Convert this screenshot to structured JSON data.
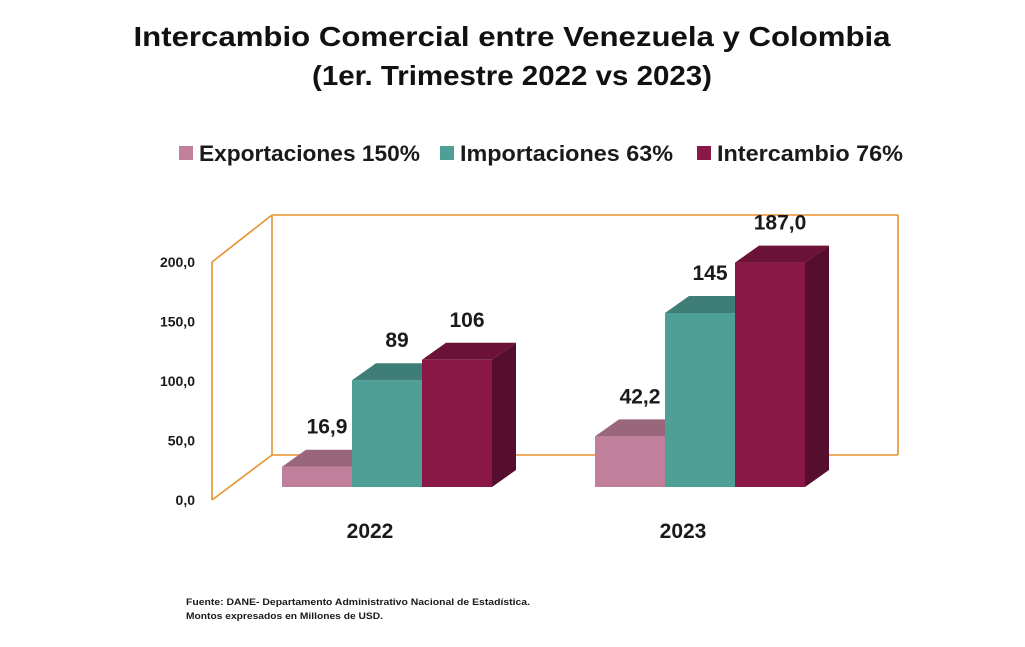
{
  "chart_data": {
    "type": "bar",
    "title": "Intercambio Comercial entre Venezuela y Colombia",
    "subtitle": "(1er. Trimestre 2022 vs 2023)",
    "categories": [
      "2022",
      "2023"
    ],
    "series": [
      {
        "name": "Exportaciones 150%",
        "values": [
          16.9,
          42.2
        ],
        "labels": [
          "16,9",
          "42,2"
        ],
        "color": "#C0809B",
        "top_color": "#9A667C",
        "side_color": "#7E5265"
      },
      {
        "name": "Importaciones 63%",
        "values": [
          89,
          145
        ],
        "labels": [
          "89",
          "145"
        ],
        "color": "#4EA096",
        "top_color": "#3E7E76",
        "side_color": "#33675F"
      },
      {
        "name": "Intercambio 76%",
        "values": [
          106,
          187.0
        ],
        "labels": [
          "106",
          "187,0"
        ],
        "color": "#8A1846",
        "top_color": "#6C1236",
        "side_color": "#560E2E"
      }
    ],
    "yticks": [
      0,
      50,
      100,
      150,
      200
    ],
    "ytick_labels": [
      "0,0",
      "50,0",
      "100,0",
      "150,0",
      "200,0"
    ],
    "ylim": [
      0,
      200
    ],
    "xlabel": "",
    "ylabel": "",
    "legend": "top",
    "frame_color": "#E8922F"
  },
  "footer": {
    "source": "Fuente: DANE- Departamento Administrativo Nacional de Estadística.",
    "note": "Montos expresados en Millones  de USD."
  }
}
